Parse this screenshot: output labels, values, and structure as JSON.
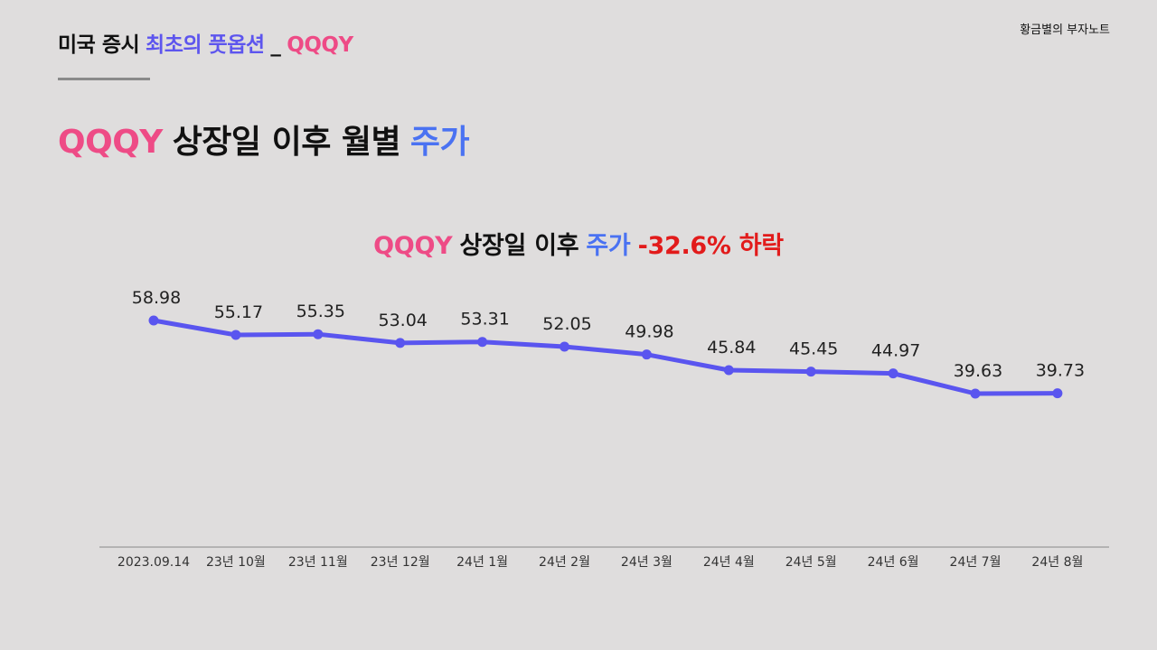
{
  "header": {
    "prefix": "미국 증시",
    "highlight": "최초의 풋옵션",
    "separator": "_",
    "ticker": "QQQY"
  },
  "brand": "황금별의 부자노트",
  "slide_title": {
    "ticker": "QQQY",
    "middle": "상장일 이후 월별",
    "end": "주가"
  },
  "colors": {
    "pink": "#ee4b86",
    "blue": "#4a72f2",
    "purple": "#5d55ee",
    "red": "#e21b1b",
    "line": "#5a55ef",
    "axis": "#9a9a9a",
    "background": "#dfdddd"
  },
  "chart_data": {
    "type": "line",
    "title": {
      "ticker": "QQQY",
      "middle": "상장일 이후",
      "price": "주가",
      "change": "-32.6% 하락"
    },
    "categories": [
      "2023.09.14",
      "23년 10월",
      "23년 11월",
      "23년 12월",
      "24년 1월",
      "24년 2월",
      "24년 3월",
      "24년 4월",
      "24년 5월",
      "24년 6월",
      "24년 7월",
      "24년 8월"
    ],
    "values": [
      58.98,
      55.17,
      55.35,
      53.04,
      53.31,
      52.05,
      49.98,
      45.84,
      45.45,
      44.97,
      39.63,
      39.73
    ],
    "value_labels": [
      "58.98",
      "55.17",
      "55.35",
      "53.04",
      "53.31",
      "52.05",
      "49.98",
      "45.84",
      "45.45",
      "44.97",
      "39.63",
      "39.73"
    ],
    "data_labels": true,
    "grid": false,
    "legend": "none"
  }
}
